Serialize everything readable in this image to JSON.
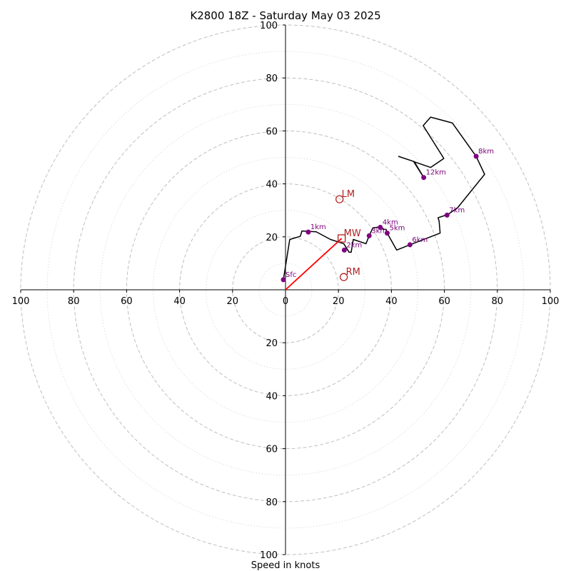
{
  "chart_data": {
    "type": "hodograph",
    "title": "K2800 18Z - Saturday May 03 2025",
    "xlabel": "Speed in knots",
    "range": [
      -100,
      100
    ],
    "rings_major": [
      20,
      40,
      60,
      80,
      100
    ],
    "rings_minor": [
      10,
      30,
      50,
      70,
      90
    ],
    "x_tick_labels": [
      {
        "value": -100,
        "label": "100"
      },
      {
        "value": -80,
        "label": "80"
      },
      {
        "value": -60,
        "label": "60"
      },
      {
        "value": -40,
        "label": "40"
      },
      {
        "value": -20,
        "label": "20"
      },
      {
        "value": 0,
        "label": "0"
      },
      {
        "value": 20,
        "label": "20"
      },
      {
        "value": 40,
        "label": "40"
      },
      {
        "value": 60,
        "label": "60"
      },
      {
        "value": 80,
        "label": "80"
      },
      {
        "value": 100,
        "label": "100"
      }
    ],
    "y_tick_labels": [
      {
        "value": 100,
        "label": "100"
      },
      {
        "value": 80,
        "label": "80"
      },
      {
        "value": 60,
        "label": "60"
      },
      {
        "value": 40,
        "label": "40"
      },
      {
        "value": 20,
        "label": "20"
      },
      {
        "value": -20,
        "label": "20"
      },
      {
        "value": -40,
        "label": "40"
      },
      {
        "value": -60,
        "label": "60"
      },
      {
        "value": -80,
        "label": "80"
      },
      {
        "value": -100,
        "label": "100"
      }
    ],
    "grid": true,
    "trace": [
      [
        -0.8,
        3.8
      ],
      [
        1.6,
        19.0
      ],
      [
        5.6,
        20.2
      ],
      [
        6.2,
        22.2
      ],
      [
        11.6,
        21.9
      ],
      [
        17.0,
        19.0
      ],
      [
        22.0,
        17.4
      ],
      [
        24.0,
        14.2
      ],
      [
        24.8,
        14.2
      ],
      [
        25.6,
        19.0
      ],
      [
        30.4,
        17.4
      ],
      [
        31.6,
        20.4
      ],
      [
        33.0,
        23.4
      ],
      [
        36.0,
        23.8
      ],
      [
        37.2,
        22.8
      ],
      [
        38.0,
        22.8
      ],
      [
        38.4,
        21.4
      ],
      [
        42.0,
        15.0
      ],
      [
        47.0,
        17.0
      ],
      [
        58.4,
        21.4
      ],
      [
        58.0,
        26.0
      ],
      [
        57.6,
        27.2
      ],
      [
        60.0,
        28.0
      ],
      [
        61.0,
        28.2
      ],
      [
        65.0,
        31.0
      ],
      [
        75.2,
        43.6
      ],
      [
        72.0,
        50.4
      ],
      [
        63.0,
        63.0
      ],
      [
        54.8,
        65.2
      ],
      [
        52.0,
        62.0
      ],
      [
        59.8,
        49.6
      ],
      [
        54.8,
        46.2
      ],
      [
        48.4,
        48.4
      ],
      [
        52.2,
        42.4
      ],
      [
        48.6,
        48.4
      ],
      [
        42.6,
        50.4
      ]
    ],
    "height_points": [
      {
        "label": "Sfc",
        "u": -0.8,
        "v": 3.8
      },
      {
        "label": "1km",
        "u": 8.6,
        "v": 21.8
      },
      {
        "label": "2km",
        "u": 22.2,
        "v": 15.0
      },
      {
        "label": "3km",
        "u": 31.6,
        "v": 20.4
      },
      {
        "label": "4km",
        "u": 35.8,
        "v": 23.6
      },
      {
        "label": "5km",
        "u": 38.4,
        "v": 21.4
      },
      {
        "label": "6km",
        "u": 47.0,
        "v": 17.0
      },
      {
        "label": "7km",
        "u": 61.0,
        "v": 28.2
      },
      {
        "label": "8km",
        "u": 72.0,
        "v": 50.4
      },
      {
        "label": "12km",
        "u": 52.2,
        "v": 42.4
      }
    ],
    "motions": [
      {
        "label": "LM",
        "u": 20.4,
        "v": 34.2,
        "marker": "circle"
      },
      {
        "label": "MW",
        "u": 21.2,
        "v": 19.4,
        "marker": "square"
      },
      {
        "label": "RM",
        "u": 22.0,
        "v": 4.8,
        "marker": "circle"
      }
    ],
    "mean_wind_vector": {
      "u": 21.2,
      "v": 19.4
    },
    "colors": {
      "trace": "#000000",
      "height_points": "#800080",
      "motions": "#b22222",
      "vector": "#ff0000",
      "grid": "#bfbfbf"
    }
  }
}
